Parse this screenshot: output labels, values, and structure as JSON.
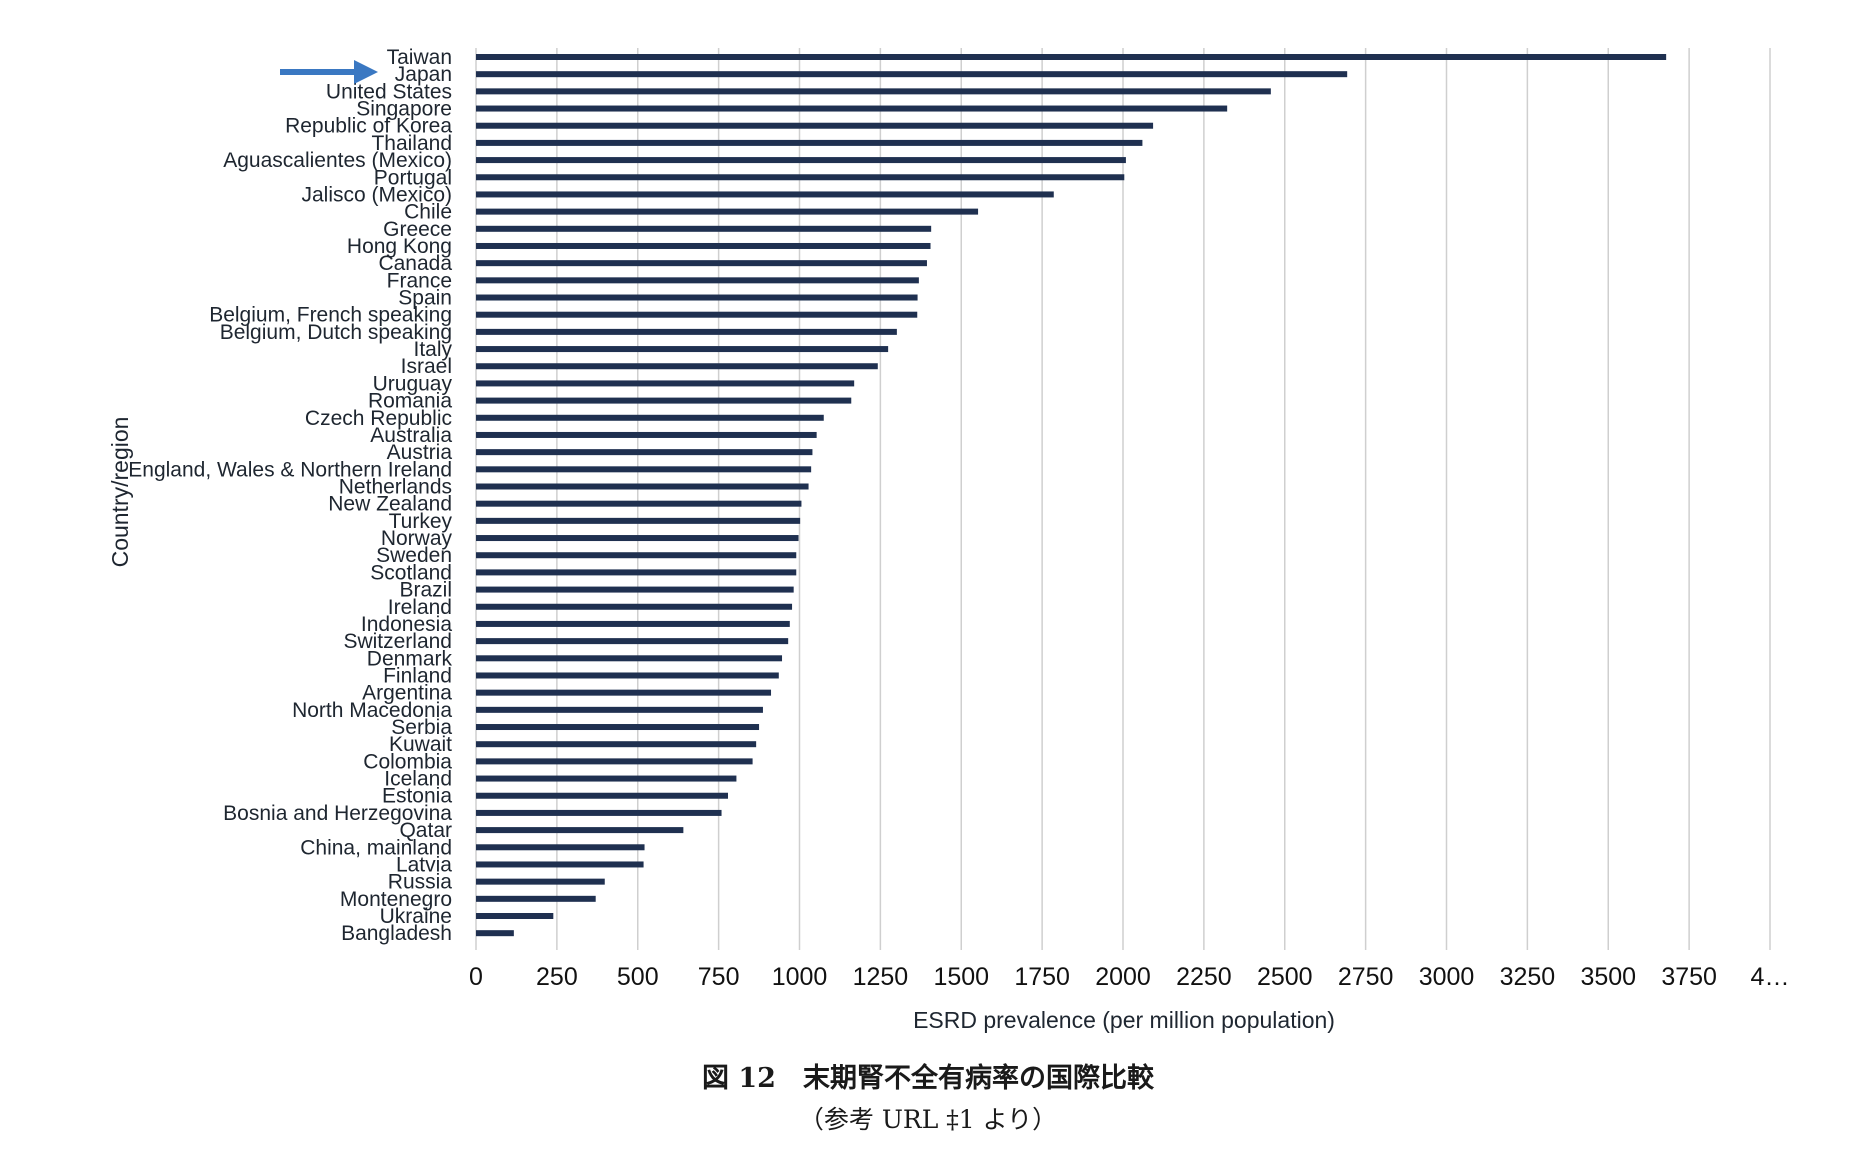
{
  "chart_data": {
    "type": "bar",
    "orientation": "horizontal",
    "xlabel": "ESRD prevalence (per million population)",
    "ylabel": "Country/region",
    "xlim": [
      0,
      4000
    ],
    "x_ticks": [
      "0",
      "250",
      "500",
      "750",
      "1000",
      "1250",
      "1500",
      "1750",
      "2000",
      "2250",
      "2500",
      "2750",
      "3000",
      "3250",
      "3500",
      "3750",
      "4…"
    ],
    "grid": "vertical",
    "bar_color": "#1f3050",
    "highlight": {
      "category": "Japan",
      "marker": "arrow",
      "color": "#3a78c2"
    },
    "categories": [
      "Taiwan",
      "Japan",
      "United States",
      "Singapore",
      "Republic of Korea",
      "Thailand",
      "Aguascalientes (Mexico)",
      "Portugal",
      "Jalisco (Mexico)",
      "Chile",
      "Greece",
      "Hong Kong",
      "Canada",
      "France",
      "Spain",
      "Belgium, French speaking",
      "Belgium, Dutch speaking",
      "Italy",
      "Israel",
      "Uruguay",
      "Romania",
      "Czech Republic",
      "Australia",
      "Austria",
      "England, Wales & Northern Ireland",
      "Netherlands",
      "New Zealand",
      "Turkey",
      "Norway",
      "Sweden",
      "Scotland",
      "Brazil",
      "Ireland",
      "Indonesia",
      "Switzerland",
      "Denmark",
      "Finland",
      "Argentina",
      "North Macedonia",
      "Serbia",
      "Kuwait",
      "Colombia",
      "Iceland",
      "Estonia",
      "Bosnia and Herzegovina",
      "Qatar",
      "China, mainland",
      "Latvia",
      "Russia",
      "Montenegro",
      "Ukraine",
      "Bangladesh"
    ],
    "values": [
      3679,
      2693,
      2457,
      2322,
      2093,
      2060,
      2009,
      2004,
      1786,
      1552,
      1407,
      1405,
      1394,
      1369,
      1365,
      1364,
      1301,
      1274,
      1242,
      1169,
      1160,
      1075,
      1053,
      1040,
      1036,
      1028,
      1006,
      1002,
      997,
      990,
      990,
      982,
      977,
      970,
      965,
      946,
      936,
      912,
      887,
      875,
      866,
      855,
      805,
      779,
      759,
      641,
      521,
      518,
      398,
      370,
      239,
      117
    ]
  },
  "caption": {
    "title": "図 12　末期腎不全有病率の国際比較",
    "source": "（参考 URL ‡1 より）"
  }
}
